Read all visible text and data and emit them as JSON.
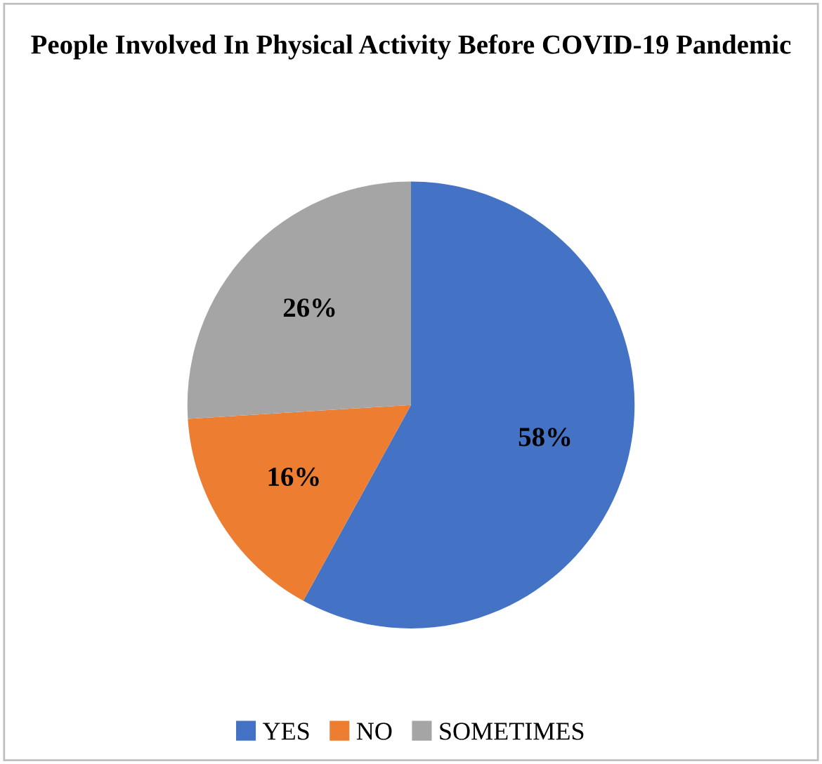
{
  "chart_data": {
    "type": "pie",
    "title": "People Involved In Physical Activity Before COVID-19 Pandemic",
    "categories": [
      "YES",
      "NO",
      "SOMETIMES"
    ],
    "values": [
      58,
      16,
      26
    ],
    "colors": [
      "#4472c4",
      "#ed7d31",
      "#a5a5a5"
    ],
    "value_labels": [
      "58%",
      "16%",
      "26%"
    ],
    "legend": "bottom"
  }
}
